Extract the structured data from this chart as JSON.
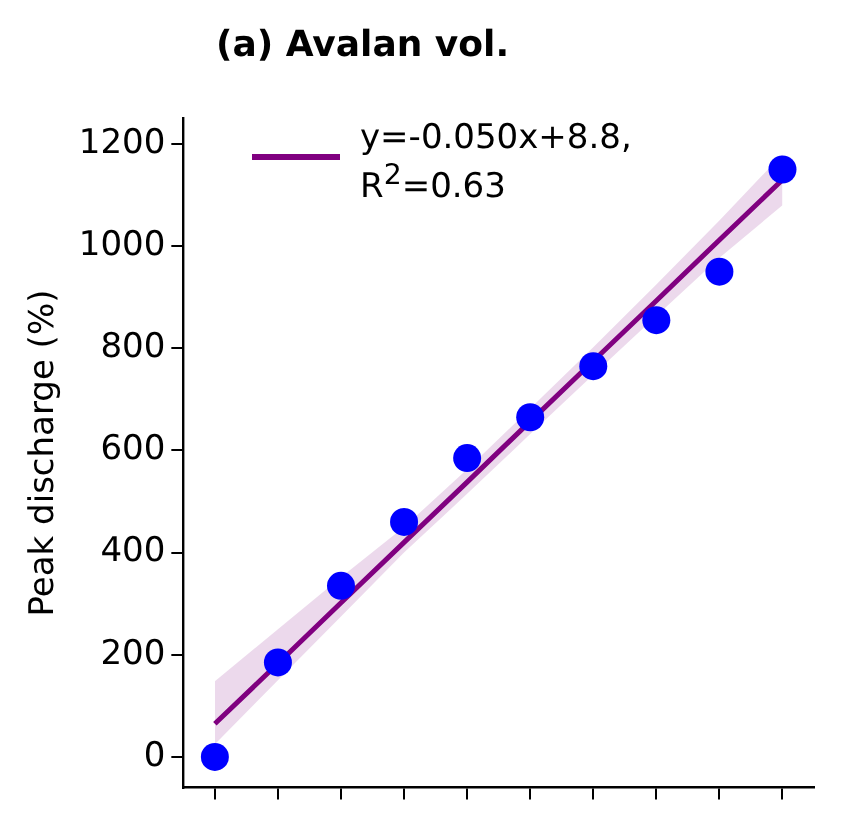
{
  "chart_data": {
    "type": "scatter",
    "title": "(a) Avalan vol.",
    "ylabel": "Peak discharge (%)",
    "categories": [
      null,
      null,
      null,
      null,
      null,
      null,
      null,
      null,
      null,
      null
    ],
    "ylim": [
      -60,
      1250
    ],
    "yticks": [
      0,
      200,
      400,
      600,
      800,
      1000,
      1200
    ],
    "tick_labels": "y",
    "grid": false,
    "legend": "top left",
    "series": [
      {
        "type": "scatter",
        "color": "#0000ff",
        "marker": "circle",
        "values": [
          0,
          185,
          335,
          460,
          585,
          665,
          765,
          855,
          950,
          1150
        ]
      },
      {
        "type": "line",
        "name": "y=-0.050x+8.8,\nR$^{2}$=0.63",
        "color": "#800080",
        "marker": "none",
        "line_style": "solid",
        "values": [
          65,
          183,
          302,
          420,
          538,
          657,
          775,
          893,
          1012,
          1130
        ],
        "lower": [
          25,
          150,
          275,
          400,
          515,
          632,
          748,
          863,
          977,
          1080
        ],
        "upper": [
          148,
          250,
          352,
          450,
          563,
          682,
          802,
          925,
          1050,
          1180
        ]
      }
    ]
  }
}
